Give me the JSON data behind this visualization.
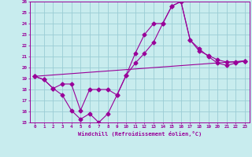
{
  "xlabel": "Windchill (Refroidissement éolien,°C)",
  "background_color": "#c8ecee",
  "grid_color": "#9accd4",
  "line_color": "#990099",
  "xlim": [
    -0.5,
    23.5
  ],
  "ylim": [
    15,
    26
  ],
  "xticks": [
    0,
    1,
    2,
    3,
    4,
    5,
    6,
    7,
    8,
    9,
    10,
    11,
    12,
    13,
    14,
    15,
    16,
    17,
    18,
    19,
    20,
    21,
    22,
    23
  ],
  "yticks": [
    15,
    16,
    17,
    18,
    19,
    20,
    21,
    22,
    23,
    24,
    25,
    26
  ],
  "line1_x": [
    0,
    1,
    2,
    3,
    4,
    5,
    6,
    7,
    8,
    9,
    10,
    11,
    12,
    13,
    14,
    15,
    16,
    17,
    18,
    19,
    20,
    21,
    22,
    23
  ],
  "line1_y": [
    19.2,
    18.9,
    18.1,
    17.5,
    16.1,
    15.3,
    15.8,
    15.0,
    15.8,
    17.5,
    19.3,
    21.3,
    23.0,
    24.0,
    24.0,
    25.6,
    26.0,
    22.5,
    21.7,
    21.0,
    20.4,
    20.2,
    20.4,
    20.6
  ],
  "line2_x": [
    0,
    1,
    2,
    3,
    4,
    5,
    6,
    7,
    8,
    9,
    10,
    11,
    12,
    13,
    14,
    15,
    16,
    17,
    18,
    19,
    20,
    21,
    22,
    23
  ],
  "line2_y": [
    19.2,
    18.9,
    18.1,
    18.5,
    18.5,
    16.1,
    18.0,
    18.0,
    18.0,
    17.5,
    19.3,
    20.4,
    21.3,
    22.3,
    24.0,
    25.6,
    26.0,
    22.5,
    21.5,
    21.1,
    20.7,
    20.5,
    20.5,
    20.6
  ],
  "line3_x": [
    0,
    23
  ],
  "line3_y": [
    19.2,
    20.6
  ]
}
